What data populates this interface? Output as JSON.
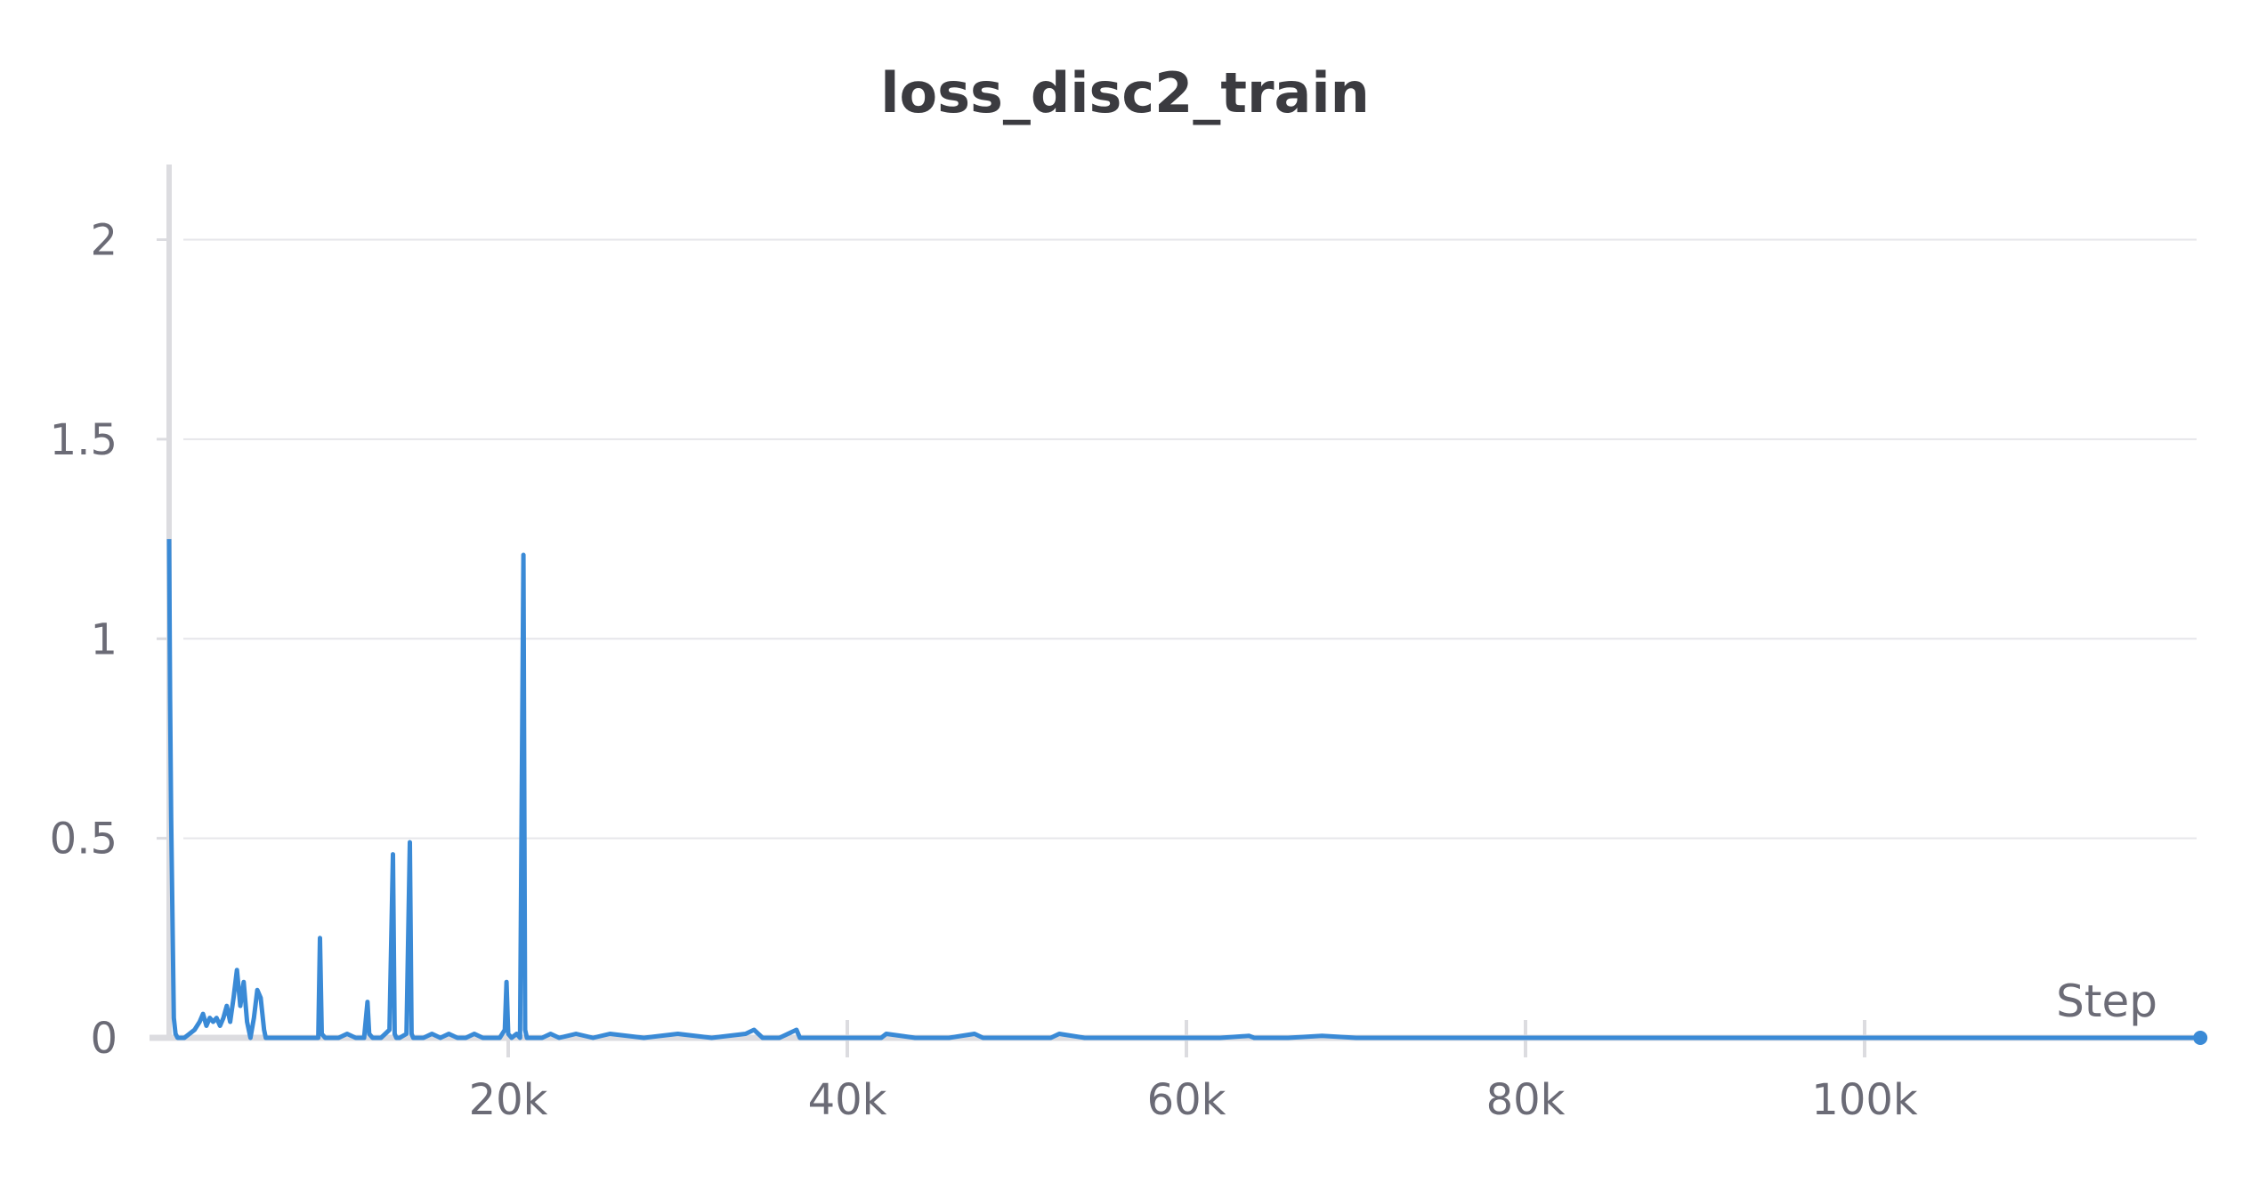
{
  "chart_data": {
    "type": "line",
    "title": "loss_disc2_train",
    "xlabel": "Step",
    "ylabel": "",
    "xlim": [
      0,
      120000
    ],
    "ylim": [
      0,
      2.2
    ],
    "x_ticks": [
      20000,
      40000,
      60000,
      80000,
      100000
    ],
    "x_tick_labels": [
      "20k",
      "40k",
      "60k",
      "80k",
      "100k"
    ],
    "y_ticks": [
      0,
      0.5,
      1,
      1.5,
      2
    ],
    "y_tick_labels": [
      "0",
      "0.5",
      "1",
      "1.5",
      "2"
    ],
    "grid": true,
    "colors": {
      "series": "#3a8ad6",
      "grid": "#e6e6ea",
      "axis": "#dcdce0",
      "text": "#6b6b76",
      "title": "#3b3b40"
    },
    "series": [
      {
        "x": [
          0,
          60,
          120,
          200,
          280,
          380,
          500,
          700,
          900,
          1200,
          1500,
          1800,
          2000,
          2200,
          2400,
          2600,
          2800,
          3000,
          3200,
          3400,
          3600,
          3800,
          4000,
          4200,
          4400,
          4600,
          4800,
          5000,
          5200,
          5400,
          5600,
          5700,
          5800,
          6000,
          6500,
          7000,
          8000,
          8800,
          8900,
          9000,
          9200,
          9400,
          10000,
          10500,
          11000,
          11500,
          11700,
          11800,
          12000,
          12500,
          13000,
          13200,
          13300,
          13400,
          13600,
          14000,
          14200,
          14300,
          14400,
          14600,
          15000,
          15500,
          16000,
          16500,
          17000,
          17500,
          18000,
          18500,
          19000,
          19500,
          19800,
          19900,
          20000,
          20200,
          20500,
          20700,
          20900,
          21000,
          21100,
          21200,
          21500,
          22000,
          22500,
          23000,
          24000,
          25000,
          26000,
          28000,
          30000,
          32000,
          34000,
          34500,
          35000,
          36000,
          37000,
          37200,
          38000,
          40000,
          42000,
          42300,
          44000,
          46000,
          47500,
          48000,
          50000,
          52000,
          52500,
          54000,
          56000,
          58000,
          60000,
          62000,
          63700,
          64000,
          66000,
          68000,
          70000,
          75000,
          80000,
          85000,
          90000,
          95000,
          100000,
          105000,
          110000,
          115000,
          119800
        ],
        "y": [
          1.25,
          0.85,
          0.55,
          0.3,
          0.05,
          0.01,
          0.0,
          0.0,
          0.0,
          0.01,
          0.02,
          0.04,
          0.06,
          0.03,
          0.05,
          0.04,
          0.05,
          0.03,
          0.05,
          0.08,
          0.04,
          0.1,
          0.17,
          0.08,
          0.14,
          0.04,
          0.0,
          0.05,
          0.12,
          0.1,
          0.02,
          0.0,
          0.0,
          0.0,
          0.0,
          0.0,
          0.0,
          0.0,
          0.25,
          0.01,
          0.0,
          0.0,
          0.0,
          0.01,
          0.0,
          0.0,
          0.09,
          0.01,
          0.0,
          0.0,
          0.02,
          0.46,
          0.01,
          0.0,
          0.0,
          0.01,
          0.49,
          0.01,
          0.0,
          0.0,
          0.0,
          0.01,
          0.0,
          0.01,
          0.0,
          0.0,
          0.01,
          0.0,
          0.0,
          0.0,
          0.02,
          0.14,
          0.01,
          0.0,
          0.01,
          0.0,
          1.21,
          0.02,
          0.0,
          0.0,
          0.0,
          0.0,
          0.01,
          0.0,
          0.01,
          0.0,
          0.01,
          0.0,
          0.01,
          0.0,
          0.01,
          0.02,
          0.0,
          0.0,
          0.02,
          0.0,
          0.0,
          0.0,
          0.0,
          0.01,
          0.0,
          0.0,
          0.01,
          0.0,
          0.0,
          0.0,
          0.01,
          0.0,
          0.0,
          0.0,
          0.0,
          0.0,
          0.005,
          0.0,
          0.0,
          0.005,
          0.0,
          0.0,
          0.0,
          0.0,
          0.0,
          0.0,
          0.0,
          0.0,
          0.0,
          0.0,
          0.0
        ]
      }
    ]
  }
}
